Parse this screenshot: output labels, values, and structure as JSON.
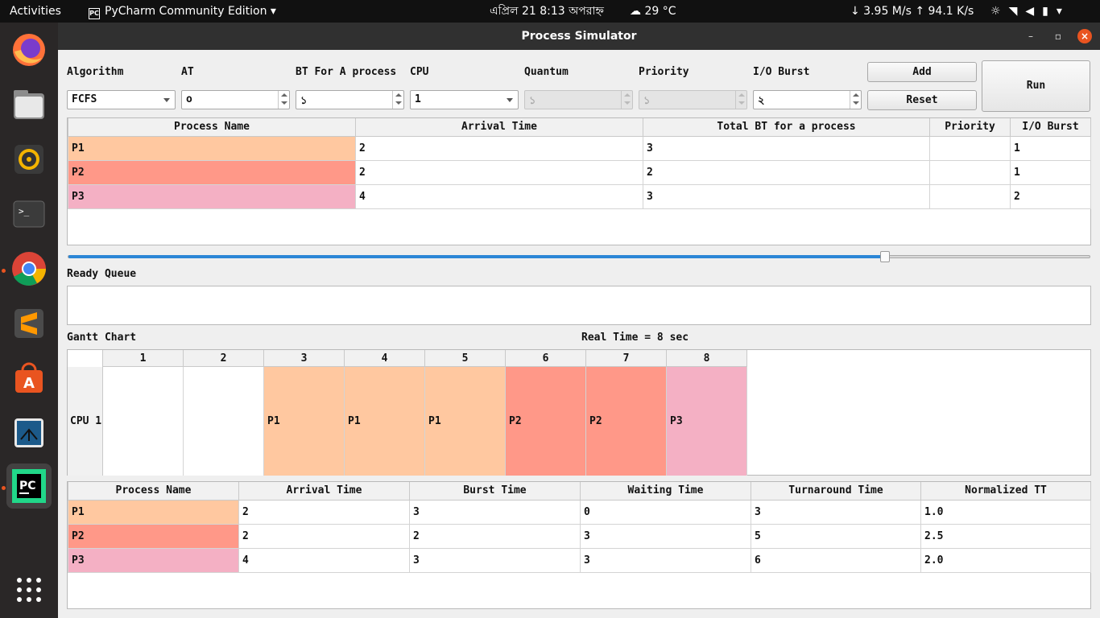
{
  "topbar": {
    "activities": "Activities",
    "app_name": "PyCharm Community Edition",
    "app_icon_text": "PC",
    "clock": "এপ্রিল 21  8:13 অপরাহ্ন",
    "weather": "29 °C",
    "network": "↓ 3.95 M/s ↑ 94.1 K/s",
    "tray_icons": [
      "brightness-icon",
      "wifi-icon",
      "volume-icon",
      "battery-icon",
      "chevron-down-icon"
    ]
  },
  "dock": {
    "items": [
      "firefox-icon",
      "files-icon",
      "rhythmbox-icon",
      "terminal-icon",
      "chrome-icon",
      "sublime-text-icon",
      "software-center-icon",
      "vim-icon",
      "pycharm-icon",
      "app-grid-icon"
    ]
  },
  "window": {
    "title": "Process Simulator"
  },
  "controls": {
    "algorithm_label": "Algorithm",
    "algorithm_value": "FCFS",
    "at_label": "AT",
    "at_value": "o",
    "bt_label": "BT For A process",
    "bt_value": "১",
    "cpu_label": "CPU",
    "cpu_value": "1",
    "quantum_label": "Quantum",
    "quantum_value": "১",
    "priority_label": "Priority",
    "priority_value": "১",
    "io_label": "I/O Burst",
    "io_value": "২",
    "add": "Add",
    "reset": "Reset",
    "run": "Run"
  },
  "process_table": {
    "headers": [
      "Process Name",
      "Arrival Time",
      "Total BT for a process",
      "Priority",
      "I/O Burst"
    ],
    "rows": [
      {
        "name": "P1",
        "arrival": "2",
        "bt": "3",
        "priority": "",
        "io": "1",
        "color": "#ffc8a0"
      },
      {
        "name": "P2",
        "arrival": "2",
        "bt": "2",
        "priority": "",
        "io": "1",
        "color": "#ff9888"
      },
      {
        "name": "P3",
        "arrival": "4",
        "bt": "3",
        "priority": "",
        "io": "2",
        "color": "#f4b0c4"
      }
    ]
  },
  "slider": {
    "value_fraction": 0.8
  },
  "ready_queue": {
    "label": "Ready Queue"
  },
  "gantt": {
    "label": "Gantt Chart",
    "real_time": "Real Time = 8 sec",
    "cpu_label": "CPU 1",
    "columns": [
      "1",
      "2",
      "3",
      "4",
      "5",
      "6",
      "7",
      "8"
    ],
    "cells": [
      "",
      "",
      "P1",
      "P1",
      "P1",
      "P2",
      "P2",
      "P3"
    ]
  },
  "results_table": {
    "headers": [
      "Process Name",
      "Arrival Time",
      "Burst Time",
      "Waiting Time",
      "Turnaround Time",
      "Normalized TT"
    ],
    "rows": [
      {
        "name": "P1",
        "arrival": "2",
        "burst": "3",
        "waiting": "0",
        "turnaround": "3",
        "ntt": "1.0"
      },
      {
        "name": "P2",
        "arrival": "2",
        "burst": "2",
        "waiting": "3",
        "turnaround": "5",
        "ntt": "2.5"
      },
      {
        "name": "P3",
        "arrival": "4",
        "burst": "3",
        "waiting": "3",
        "turnaround": "6",
        "ntt": "2.0"
      }
    ]
  },
  "colors": {
    "P1": "#ffc8a0",
    "P2": "#ff9888",
    "P3": "#f4b0c4",
    "accent": "#2b86d6",
    "ubuntu_orange": "#e95420"
  }
}
